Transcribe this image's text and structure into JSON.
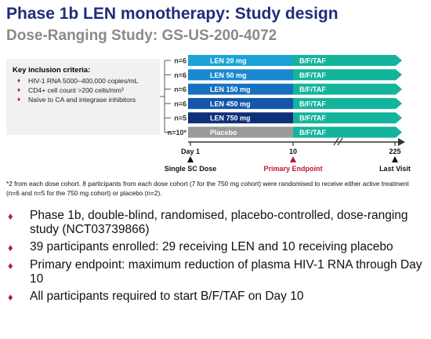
{
  "title": "Phase 1b LEN monotherapy: Study design",
  "subtitle": "Dose-Ranging Study: GS-US-200-4072",
  "criteria": {
    "heading": "Key inclusion criteria:",
    "items": [
      "HIV-1 RNA 5000–400,000 copies/mL",
      "CD4+ cell count >200 cells/mm³",
      "Naïve to CA and integrase inhibitors"
    ]
  },
  "arms": [
    {
      "n": "n=6",
      "dose": "LEN 20 mg",
      "after": "B/F/TAF",
      "color": "#1aa3d6"
    },
    {
      "n": "n=6",
      "dose": "LEN 50 mg",
      "after": "B/F/TAF",
      "color": "#1a8ad0"
    },
    {
      "n": "n=6",
      "dose": "LEN 150 mg",
      "after": "B/F/TAF",
      "color": "#1671c0"
    },
    {
      "n": "n=6",
      "dose": "LEN 450 mg",
      "after": "B/F/TAF",
      "color": "#1457aa"
    },
    {
      "n": "n=5",
      "dose": "LEN 750 mg",
      "after": "B/F/TAF",
      "color": "#0f2f78"
    },
    {
      "n": "n=10*",
      "dose": "Placebo",
      "after": "B/F/TAF",
      "color": "#9a9a9a"
    }
  ],
  "after_color": "#14b49c",
  "timeline": {
    "ticks": [
      "Day 1",
      "10",
      "225"
    ],
    "labels": {
      "start": "Single SC Dose",
      "mid": "Primary Endpoint",
      "end": "Last Visit"
    },
    "mid_color": "#c0182c"
  },
  "note": "*2 from each dose cohort. 8 participants from each dose cohort (7 for the 750 mg cohort) were randomised to receive either active treatment (n=6 and n=5 for the 750 mg cohort) or placebo (n=2).",
  "bullets": [
    "Phase 1b, double-blind, randomised, placebo-controlled, dose-ranging study (NCT03739866)",
    "39 participants enrolled: 29 receiving LEN and 10 receiving placebo",
    "Primary endpoint: maximum reduction of plasma HIV-1 RNA through Day 10",
    "All participants required to start B/F/TAF on Day 10"
  ]
}
